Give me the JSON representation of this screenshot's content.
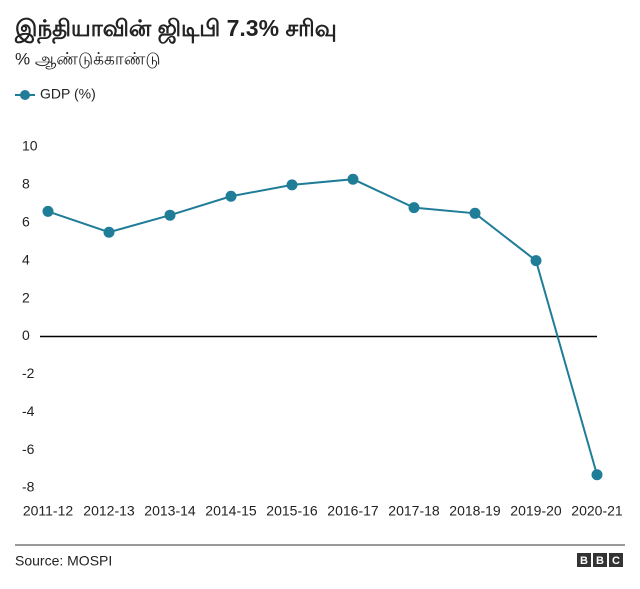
{
  "chart_data": {
    "type": "line",
    "title": "இந்தியாவின் ஜிடிபி 7.3% சரிவு",
    "subtitle": "% ஆண்டுக்காண்டு",
    "categories": [
      "2011-12",
      "2012-13",
      "2013-14",
      "2014-15",
      "2015-16",
      "2016-17",
      "2017-18",
      "2018-19",
      "2019-20",
      "2020-21"
    ],
    "series": [
      {
        "name": "GDP  (%)",
        "color": "#1f7d98",
        "values": [
          6.6,
          5.5,
          6.4,
          7.4,
          8.0,
          8.3,
          6.8,
          6.5,
          4.0,
          -7.3
        ]
      }
    ],
    "ylim": [
      -8,
      10
    ],
    "yticks": [
      10,
      8,
      6,
      4,
      2,
      0,
      -2,
      -4,
      -6,
      -8
    ],
    "source": "Source:  MOSPI",
    "logo": [
      "B",
      "B",
      "C"
    ]
  }
}
